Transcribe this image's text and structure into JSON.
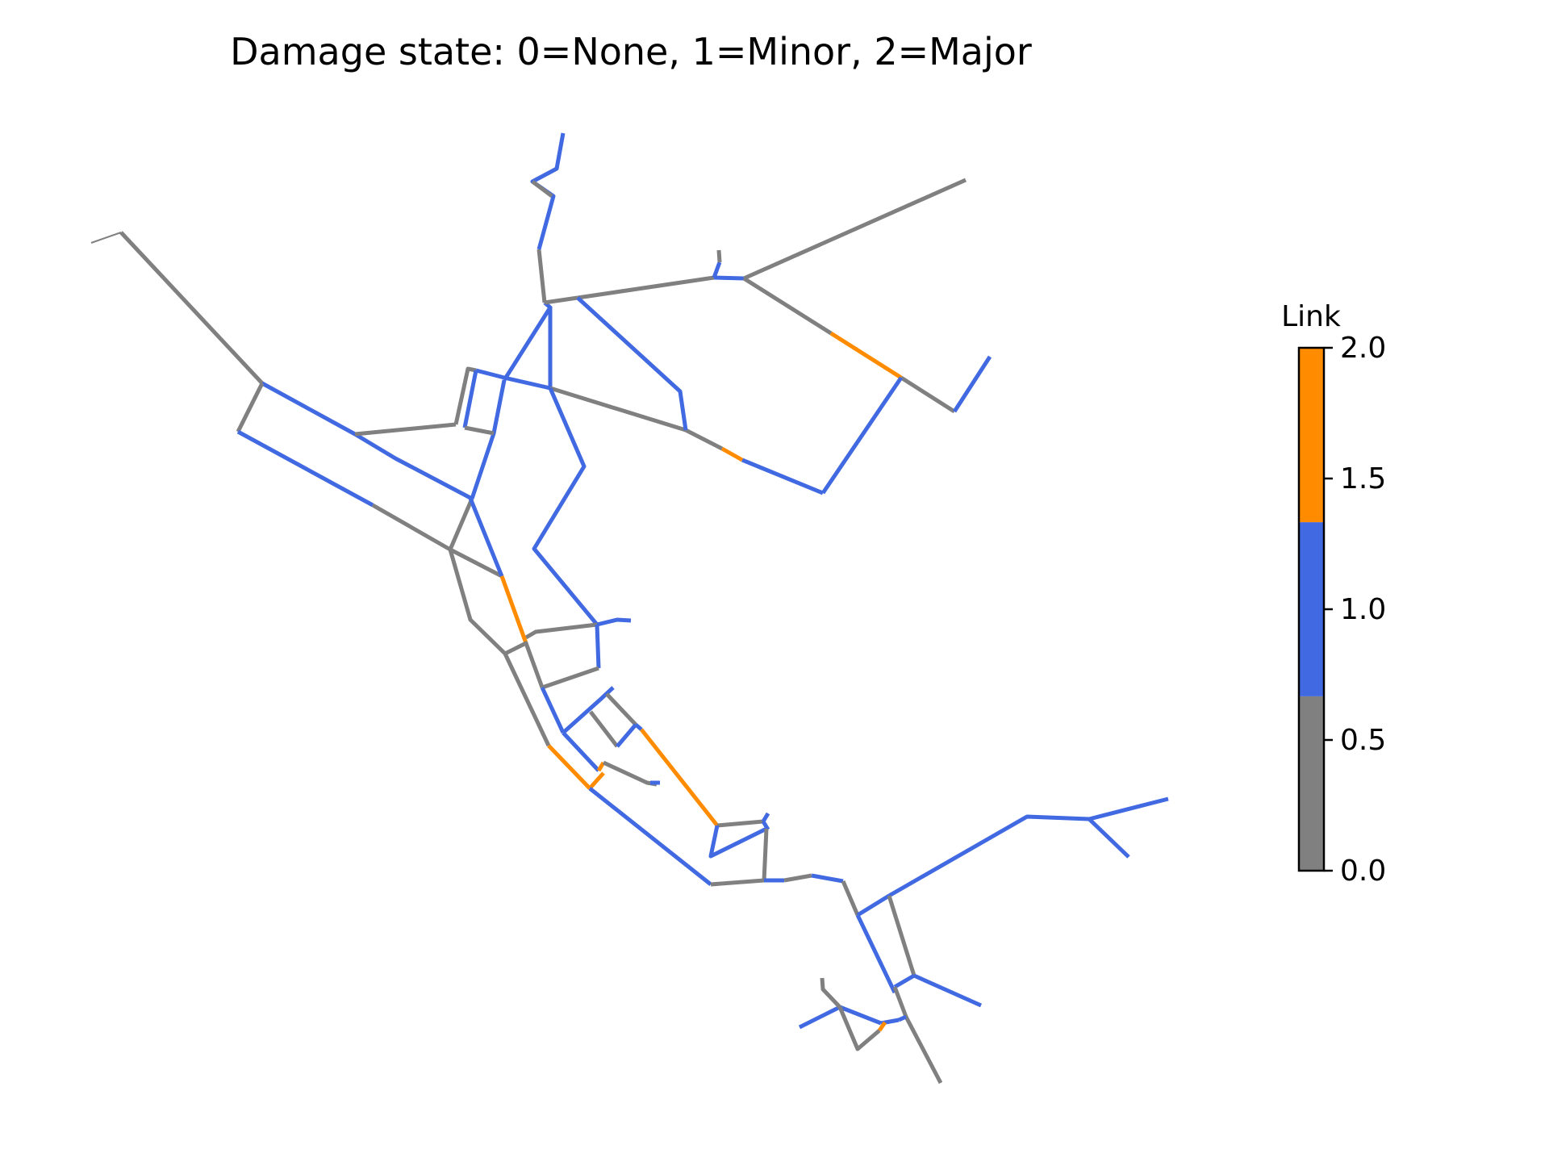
{
  "title": "Damage state: 0=None, 1=Minor, 2=Major",
  "colors": {
    "none": "#808080",
    "minor": "#4169e1",
    "major": "#ff8c00"
  },
  "colorbar": {
    "label": "Link",
    "min": 0.0,
    "max": 2.0,
    "bands": [
      {
        "from": 0.0,
        "to": 0.667,
        "color": "#808080"
      },
      {
        "from": 0.667,
        "to": 1.333,
        "color": "#4169e1"
      },
      {
        "from": 1.333,
        "to": 2.0,
        "color": "#ff8c00"
      }
    ],
    "ticks": [
      {
        "value": 0.0,
        "label": "0.0"
      },
      {
        "value": 0.5,
        "label": "0.5"
      },
      {
        "value": 1.0,
        "label": "1.0"
      },
      {
        "value": 1.5,
        "label": "1.5"
      },
      {
        "value": 2.0,
        "label": "2.0"
      }
    ]
  },
  "network": {
    "links": [
      {
        "s": 0,
        "p": [
          [
            113,
            301
          ],
          [
            150,
            288
          ]
        ]
      },
      {
        "s": 0,
        "p": [
          [
            150,
            288
          ],
          [
            325,
            475
          ]
        ]
      },
      {
        "s": 1,
        "p": [
          [
            325,
            475
          ],
          [
            440,
            538
          ],
          [
            490,
            568
          ],
          [
            585,
            618
          ]
        ]
      },
      {
        "s": 0,
        "p": [
          [
            325,
            475
          ],
          [
            295,
            535
          ]
        ]
      },
      {
        "s": 1,
        "p": [
          [
            295,
            535
          ],
          [
            462,
            626
          ]
        ]
      },
      {
        "s": 0,
        "p": [
          [
            462,
            626
          ],
          [
            558,
            681
          ]
        ]
      },
      {
        "s": 0,
        "p": [
          [
            558,
            681
          ],
          [
            585,
            618
          ]
        ]
      },
      {
        "s": 0,
        "p": [
          [
            558,
            681
          ],
          [
            622,
            714
          ]
        ]
      },
      {
        "s": 1,
        "p": [
          [
            585,
            618
          ],
          [
            612,
            537
          ],
          [
            625,
            471
          ]
        ]
      },
      {
        "s": 0,
        "p": [
          [
            440,
            538
          ],
          [
            565,
            526
          ]
        ]
      },
      {
        "s": 0,
        "p": [
          [
            565,
            526
          ],
          [
            580,
            457
          ],
          [
            590,
            459
          ]
        ]
      },
      {
        "s": 1,
        "p": [
          [
            590,
            459
          ],
          [
            576,
            530
          ]
        ]
      },
      {
        "s": 0,
        "p": [
          [
            576,
            530
          ],
          [
            612,
            537
          ]
        ]
      },
      {
        "s": 1,
        "p": [
          [
            590,
            459
          ],
          [
            625,
            468
          ]
        ]
      },
      {
        "s": 1,
        "p": [
          [
            625,
            471
          ],
          [
            682,
            381
          ],
          [
            675,
            375
          ]
        ]
      },
      {
        "s": 1,
        "p": [
          [
            625,
            468
          ],
          [
            682,
            481
          ]
        ]
      },
      {
        "s": 1,
        "p": [
          [
            682,
            381
          ],
          [
            682,
            481
          ]
        ]
      },
      {
        "s": 0,
        "p": [
          [
            675,
            375
          ],
          [
            668,
            309
          ]
        ]
      },
      {
        "s": 1,
        "p": [
          [
            668,
            309
          ],
          [
            686,
            243
          ],
          [
            660,
            225
          ],
          [
            690,
            209
          ],
          [
            698,
            165
          ]
        ]
      },
      {
        "s": 0,
        "p": [
          [
            660,
            225
          ],
          [
            684,
            243
          ]
        ]
      },
      {
        "s": 0,
        "p": [
          [
            675,
            375
          ],
          [
            716,
            369
          ]
        ]
      },
      {
        "s": 0,
        "p": [
          [
            716,
            369
          ],
          [
            885,
            344
          ]
        ]
      },
      {
        "s": 1,
        "p": [
          [
            885,
            344
          ],
          [
            922,
            345
          ]
        ]
      },
      {
        "s": 1,
        "p": [
          [
            885,
            344
          ],
          [
            892,
            325
          ]
        ]
      },
      {
        "s": 0,
        "p": [
          [
            892,
            325
          ],
          [
            891,
            310
          ]
        ]
      },
      {
        "s": 0,
        "p": [
          [
            922,
            345
          ],
          [
            1197,
            223
          ]
        ]
      },
      {
        "s": 0,
        "p": [
          [
            922,
            345
          ],
          [
            1030,
            413
          ]
        ]
      },
      {
        "s": 2,
        "p": [
          [
            1030,
            413
          ],
          [
            1117,
            468
          ]
        ]
      },
      {
        "s": 0,
        "p": [
          [
            1117,
            468
          ],
          [
            1183,
            510
          ]
        ]
      },
      {
        "s": 1,
        "p": [
          [
            1183,
            510
          ],
          [
            1227,
            442
          ]
        ]
      },
      {
        "s": 1,
        "p": [
          [
            1117,
            468
          ],
          [
            1020,
            611
          ]
        ]
      },
      {
        "s": 1,
        "p": [
          [
            1020,
            611
          ],
          [
            920,
            570
          ]
        ]
      },
      {
        "s": 2,
        "p": [
          [
            920,
            570
          ],
          [
            895,
            556
          ]
        ]
      },
      {
        "s": 0,
        "p": [
          [
            895,
            556
          ],
          [
            850,
            533
          ]
        ]
      },
      {
        "s": 0,
        "p": [
          [
            682,
            481
          ],
          [
            850,
            533
          ]
        ]
      },
      {
        "s": 1,
        "p": [
          [
            716,
            369
          ],
          [
            843,
            485
          ],
          [
            850,
            533
          ]
        ]
      },
      {
        "s": 1,
        "p": [
          [
            682,
            481
          ],
          [
            724,
            578
          ],
          [
            662,
            680
          ],
          [
            740,
            774
          ]
        ]
      },
      {
        "s": 1,
        "p": [
          [
            740,
            774
          ],
          [
            765,
            768
          ],
          [
            782,
            769
          ]
        ]
      },
      {
        "s": 0,
        "p": [
          [
            740,
            774
          ],
          [
            664,
            783
          ],
          [
            652,
            790
          ]
        ]
      },
      {
        "s": 1,
        "p": [
          [
            740,
            774
          ],
          [
            742,
            828
          ]
        ]
      },
      {
        "s": 1,
        "p": [
          [
            582,
            615
          ],
          [
            622,
            714
          ]
        ]
      },
      {
        "s": 2,
        "p": [
          [
            622,
            714
          ],
          [
            652,
            797
          ]
        ]
      },
      {
        "s": 0,
        "p": [
          [
            558,
            681
          ],
          [
            583,
            768
          ],
          [
            626,
            810
          ]
        ]
      },
      {
        "s": 0,
        "p": [
          [
            626,
            810
          ],
          [
            652,
            797
          ],
          [
            672,
            852
          ]
        ]
      },
      {
        "s": 0,
        "p": [
          [
            626,
            810
          ],
          [
            680,
            924
          ]
        ]
      },
      {
        "s": 0,
        "p": [
          [
            672,
            852
          ],
          [
            742,
            828
          ]
        ]
      },
      {
        "s": 1,
        "p": [
          [
            672,
            852
          ],
          [
            698,
            908
          ]
        ]
      },
      {
        "s": 1,
        "p": [
          [
            698,
            908
          ],
          [
            745,
            866
          ],
          [
            760,
            852
          ]
        ]
      },
      {
        "s": 0,
        "p": [
          [
            752,
            860
          ],
          [
            788,
            898
          ]
        ]
      },
      {
        "s": 1,
        "p": [
          [
            788,
            898
          ],
          [
            795,
            904
          ]
        ]
      },
      {
        "s": 0,
        "p": [
          [
            732,
            882
          ],
          [
            765,
            925
          ]
        ]
      },
      {
        "s": 1,
        "p": [
          [
            765,
            925
          ],
          [
            788,
            898
          ]
        ]
      },
      {
        "s": 1,
        "p": [
          [
            698,
            908
          ],
          [
            742,
            955
          ]
        ]
      },
      {
        "s": 2,
        "p": [
          [
            742,
            955
          ],
          [
            748,
            945
          ]
        ]
      },
      {
        "s": 0,
        "p": [
          [
            748,
            945
          ],
          [
            802,
            970
          ],
          [
            814,
            972
          ]
        ]
      },
      {
        "s": 1,
        "p": [
          [
            806,
            970
          ],
          [
            818,
            970
          ]
        ]
      },
      {
        "s": 2,
        "p": [
          [
            795,
            904
          ],
          [
            889,
            1023
          ]
        ]
      },
      {
        "s": 2,
        "p": [
          [
            680,
            924
          ],
          [
            731,
            977
          ]
        ]
      },
      {
        "s": 2,
        "p": [
          [
            731,
            977
          ],
          [
            748,
            958
          ]
        ]
      },
      {
        "s": 1,
        "p": [
          [
            731,
            977
          ],
          [
            881,
            1096
          ]
        ]
      },
      {
        "s": 0,
        "p": [
          [
            889,
            1023
          ],
          [
            946,
            1018
          ]
        ]
      },
      {
        "s": 1,
        "p": [
          [
            946,
            1018
          ],
          [
            952,
            1008
          ]
        ]
      },
      {
        "s": 1,
        "p": [
          [
            952,
            1028
          ],
          [
            946,
            1018
          ]
        ]
      },
      {
        "s": 1,
        "p": [
          [
            889,
            1023
          ],
          [
            881,
            1061
          ],
          [
            950,
            1027
          ]
        ]
      },
      {
        "s": 0,
        "p": [
          [
            950,
            1027
          ],
          [
            947,
            1092
          ]
        ]
      },
      {
        "s": 0,
        "p": [
          [
            881,
            1096
          ],
          [
            947,
            1091
          ]
        ]
      },
      {
        "s": 1,
        "p": [
          [
            947,
            1091
          ],
          [
            972,
            1091
          ]
        ]
      },
      {
        "s": 0,
        "p": [
          [
            972,
            1091
          ],
          [
            1006,
            1085
          ]
        ]
      },
      {
        "s": 1,
        "p": [
          [
            1006,
            1085
          ],
          [
            1045,
            1092
          ]
        ]
      },
      {
        "s": 0,
        "p": [
          [
            1045,
            1092
          ],
          [
            1063,
            1134
          ]
        ]
      },
      {
        "s": 1,
        "p": [
          [
            1063,
            1134
          ],
          [
            1102,
            1110
          ]
        ]
      },
      {
        "s": 1,
        "p": [
          [
            1102,
            1110
          ],
          [
            1273,
            1012
          ],
          [
            1350,
            1015
          ],
          [
            1448,
            990
          ]
        ]
      },
      {
        "s": 1,
        "p": [
          [
            1350,
            1015
          ],
          [
            1399,
            1062
          ]
        ]
      },
      {
        "s": 0,
        "p": [
          [
            1102,
            1110
          ],
          [
            1133,
            1209
          ]
        ]
      },
      {
        "s": 1,
        "p": [
          [
            1063,
            1134
          ],
          [
            1109,
            1230
          ]
        ]
      },
      {
        "s": 1,
        "p": [
          [
            1133,
            1209
          ],
          [
            1109,
            1223
          ]
        ]
      },
      {
        "s": 1,
        "p": [
          [
            1133,
            1209
          ],
          [
            1216,
            1246
          ]
        ]
      },
      {
        "s": 0,
        "p": [
          [
            1109,
            1223
          ],
          [
            1123,
            1260
          ],
          [
            1166,
            1342
          ]
        ]
      },
      {
        "s": 1,
        "p": [
          [
            1123,
            1260
          ],
          [
            1114,
            1264
          ]
        ]
      },
      {
        "s": 1,
        "p": [
          [
            1092,
            1268
          ],
          [
            1114,
            1264
          ]
        ]
      },
      {
        "s": 1,
        "p": [
          [
            1041,
            1248
          ],
          [
            1092,
            1268
          ]
        ]
      },
      {
        "s": 1,
        "p": [
          [
            991,
            1273
          ],
          [
            1041,
            1248
          ]
        ]
      },
      {
        "s": 0,
        "p": [
          [
            1041,
            1248
          ],
          [
            1020,
            1226
          ],
          [
            1019,
            1212
          ]
        ]
      },
      {
        "s": 0,
        "p": [
          [
            1041,
            1248
          ],
          [
            1063,
            1300
          ],
          [
            1090,
            1277
          ]
        ]
      },
      {
        "s": 2,
        "p": [
          [
            1090,
            1277
          ],
          [
            1097,
            1267
          ]
        ]
      }
    ]
  }
}
